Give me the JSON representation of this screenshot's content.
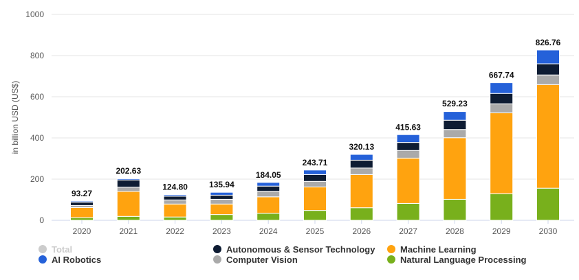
{
  "chart_data": {
    "type": "bar",
    "stacked": true,
    "title": "",
    "xlabel": "",
    "ylabel": "in billion USD (US$)",
    "ylim": [
      0,
      1000
    ],
    "yticks": [
      0,
      200,
      400,
      600,
      800,
      1000
    ],
    "grid": true,
    "legend_position": "bottom",
    "categories": [
      "2020",
      "2021",
      "2022",
      "2023",
      "2024",
      "2025",
      "2026",
      "2027",
      "2028",
      "2029",
      "2030"
    ],
    "totals": [
      "93.27",
      "202.63",
      "124.80",
      "135.94",
      "184.05",
      "243.71",
      "320.13",
      "415.63",
      "529.23",
      "667.74",
      "826.76"
    ],
    "series": [
      {
        "name": "Natural Language Processing",
        "color": "#78b01c",
        "values": [
          13,
          19,
          16,
          28,
          34,
          48,
          61,
          82,
          102,
          129,
          156
        ]
      },
      {
        "name": "Machine Learning",
        "color": "#ffa30f",
        "values": [
          49,
          121,
          63,
          51,
          80,
          114,
          161,
          220,
          299,
          393,
          503
        ]
      },
      {
        "name": "Computer Vision",
        "color": "#aaaaaa",
        "values": [
          10,
          21,
          20,
          23,
          27,
          27,
          32,
          37,
          40,
          44,
          47
        ]
      },
      {
        "name": "Autonomous & Sensor Technology",
        "color": "#0e1c33",
        "values": [
          16,
          35,
          18,
          20,
          25,
          33,
          38,
          39,
          45,
          50,
          54
        ]
      },
      {
        "name": "AI Robotics",
        "color": "#2561d9",
        "values": [
          5,
          6,
          7,
          14,
          18,
          22,
          28,
          38,
          42,
          52,
          67
        ]
      }
    ],
    "legend": [
      {
        "name": "Total",
        "color": "#cccccc",
        "hidden": true
      },
      {
        "name": "AI Robotics",
        "color": "#2561d9"
      },
      {
        "name": "Autonomous & Sensor Technology",
        "color": "#0e1c33"
      },
      {
        "name": "Computer Vision",
        "color": "#aaaaaa"
      },
      {
        "name": "Machine Learning",
        "color": "#ffa30f"
      },
      {
        "name": "Natural Language Processing",
        "color": "#78b01c"
      }
    ]
  }
}
